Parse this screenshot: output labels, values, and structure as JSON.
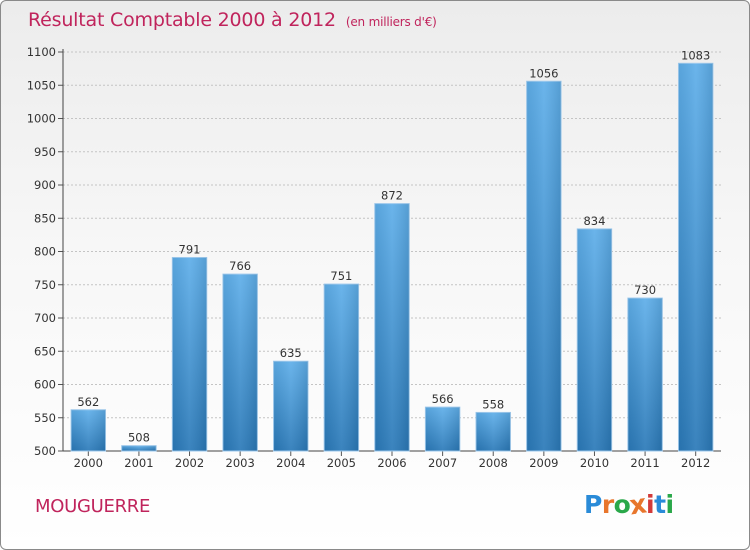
{
  "chart_data": {
    "type": "bar",
    "title": "Résultat Comptable 2000 à 2012",
    "subtitle": "(en milliers d'€)",
    "categories": [
      "2000",
      "2001",
      "2002",
      "2003",
      "2004",
      "2005",
      "2006",
      "2007",
      "2008",
      "2009",
      "2010",
      "2011",
      "2012"
    ],
    "values": [
      562,
      508,
      791,
      766,
      635,
      751,
      872,
      566,
      558,
      1056,
      834,
      730,
      1083
    ],
    "ylim": [
      500,
      1100
    ],
    "yticks": [
      500,
      550,
      600,
      650,
      700,
      750,
      800,
      850,
      900,
      950,
      1000,
      1050,
      1100
    ],
    "grid": true,
    "bar_color": "#3a8fd6"
  },
  "footer": {
    "commune": "MOUGUERRE",
    "logo": "Proxiti",
    "logo_colors": [
      "#2a8bd8",
      "#e8762c",
      "#2aa84a",
      "#e8762c",
      "#d23a3a",
      "#2a8bd8",
      "#2aa84a"
    ]
  }
}
